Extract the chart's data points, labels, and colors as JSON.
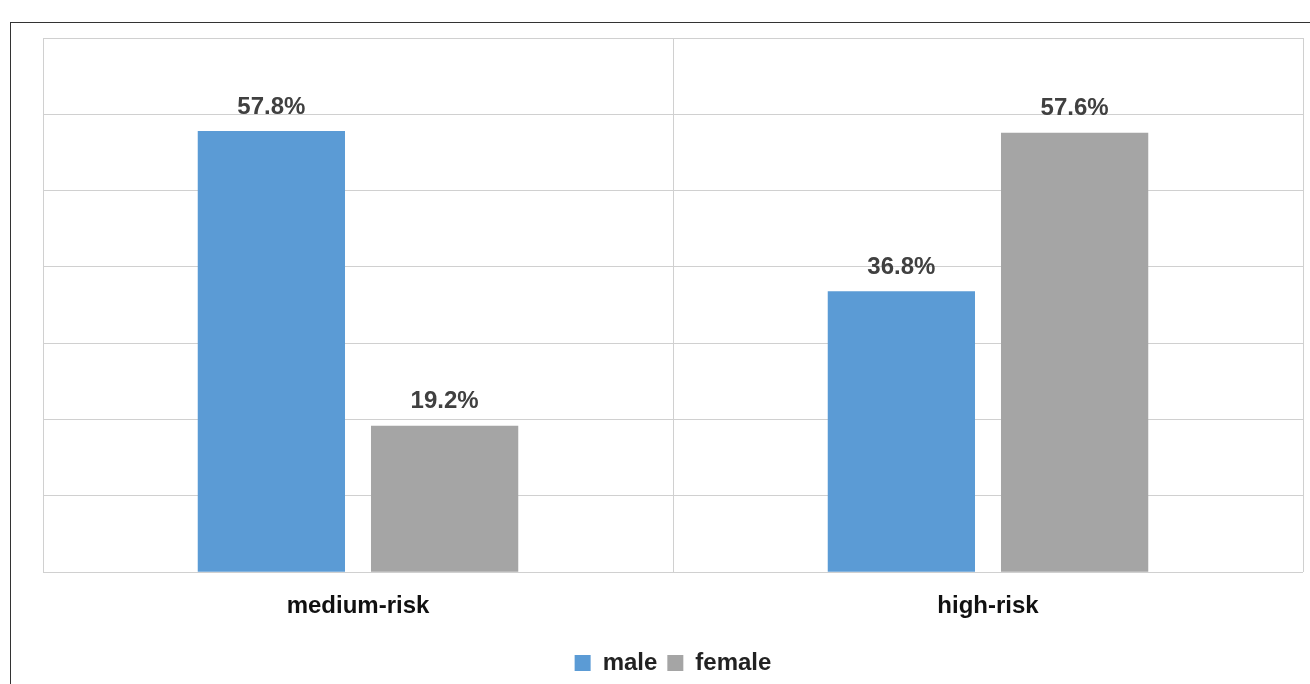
{
  "chart_data": {
    "type": "bar",
    "categories": [
      "medium-risk",
      "high-risk"
    ],
    "series": [
      {
        "name": "male",
        "color": "#5b9bd5",
        "values": [
          57.8,
          36.8
        ],
        "value_labels": [
          "57.8%",
          "36.8%"
        ]
      },
      {
        "name": "female",
        "color": "#a5a5a5",
        "values": [
          19.2,
          57.6
        ],
        "value_labels": [
          "19.2%",
          "57.6%"
        ]
      }
    ],
    "ylim": [
      0,
      70
    ],
    "yticks": [
      {
        "value": 0,
        "label": null
      },
      {
        "value": 10,
        "label": null
      },
      {
        "value": 20,
        "label": null
      },
      {
        "value": 30,
        "label": null
      },
      {
        "value": 40,
        "label": null
      },
      {
        "value": 50,
        "label": null
      },
      {
        "value": 60,
        "label": null
      },
      {
        "value": 70,
        "label": null
      }
    ],
    "tick_labels": "x",
    "grid": true,
    "legend": "bottom"
  }
}
